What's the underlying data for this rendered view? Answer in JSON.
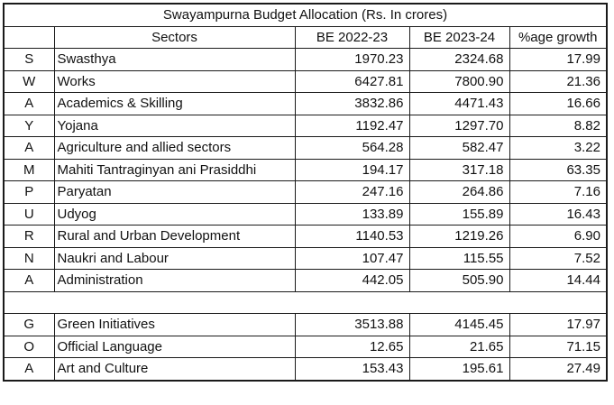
{
  "table": {
    "title": "Swayampurna Budget Allocation (Rs. In crores)",
    "headers": {
      "code": "",
      "sector": "Sectors",
      "be_2022_23": "BE 2022-23",
      "be_2023_24": "BE 2023-24",
      "growth": "%age growth"
    },
    "group1": [
      {
        "code": "S",
        "sector": "Swasthya",
        "be_2022_23": "1970.23",
        "be_2023_24": "2324.68",
        "growth": "17.99"
      },
      {
        "code": "W",
        "sector": "Works",
        "be_2022_23": "6427.81",
        "be_2023_24": "7800.90",
        "growth": "21.36"
      },
      {
        "code": "A",
        "sector": "Academics & Skilling",
        "be_2022_23": "3832.86",
        "be_2023_24": "4471.43",
        "growth": "16.66"
      },
      {
        "code": "Y",
        "sector": "Yojana",
        "be_2022_23": "1192.47",
        "be_2023_24": "1297.70",
        "growth": "8.82"
      },
      {
        "code": "A",
        "sector": "Agriculture and allied sectors",
        "be_2022_23": "564.28",
        "be_2023_24": "582.47",
        "growth": "3.22"
      },
      {
        "code": "M",
        "sector": "Mahiti Tantraginyan ani Prasiddhi",
        "be_2022_23": "194.17",
        "be_2023_24": "317.18",
        "growth": "63.35"
      },
      {
        "code": "P",
        "sector": "Paryatan",
        "be_2022_23": "247.16",
        "be_2023_24": "264.86",
        "growth": "7.16"
      },
      {
        "code": "U",
        "sector": "Udyog",
        "be_2022_23": "133.89",
        "be_2023_24": "155.89",
        "growth": "16.43"
      },
      {
        "code": "R",
        "sector": "Rural and Urban Development",
        "be_2022_23": "1140.53",
        "be_2023_24": "1219.26",
        "growth": "6.90"
      },
      {
        "code": "N",
        "sector": "Naukri and Labour",
        "be_2022_23": "107.47",
        "be_2023_24": "115.55",
        "growth": "7.52"
      },
      {
        "code": "A",
        "sector": "Administration",
        "be_2022_23": "442.05",
        "be_2023_24": "505.90",
        "growth": "14.44"
      }
    ],
    "group2": [
      {
        "code": "G",
        "sector": "Green Initiatives",
        "be_2022_23": "3513.88",
        "be_2023_24": "4145.45",
        "growth": "17.97"
      },
      {
        "code": "O",
        "sector": "Official Language",
        "be_2022_23": "12.65",
        "be_2023_24": "21.65",
        "growth": "71.15"
      },
      {
        "code": "A",
        "sector": "Art and Culture",
        "be_2022_23": "153.43",
        "be_2023_24": "195.61",
        "growth": "27.49"
      }
    ]
  }
}
